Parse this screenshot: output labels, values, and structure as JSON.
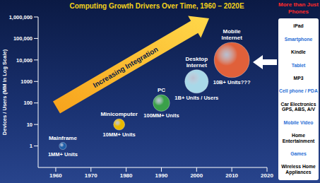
{
  "chart_data": {
    "type": "scatter",
    "title": "Computing Growth Drivers Over Time, 1960 – 2020E",
    "y_label": "Devices / Users (MM in Log Scale)",
    "x": [
      1962,
      1978,
      1990,
      2000,
      2010
    ],
    "values": [
      1,
      10,
      100,
      1000,
      10000
    ],
    "sizes": [
      1,
      2.5,
      5.5,
      11,
      25
    ],
    "labels": [
      "Mainframe",
      "Minicomputer",
      "PC",
      "Desktop Internet",
      "Mobile Internet"
    ],
    "unit_labels": [
      "1MM+ Units",
      "10MM+ Units",
      "100MM+ Units",
      "1B+ Units / Users",
      "10B+ Units???"
    ],
    "colors": [
      "#1f5fa8",
      "#e8b800",
      "#3aa04a",
      "#a8d8e8",
      "#e0603a"
    ],
    "log": "y",
    "xlim": [
      1955,
      2020
    ],
    "xticks": [
      1960,
      1970,
      1980,
      1990,
      2000,
      2010,
      2020
    ],
    "ylim": [
      0.1,
      1000000
    ],
    "yticks": [
      1,
      10,
      100,
      1000,
      {
        "value": 10000,
        "label": "10,000"
      },
      {
        "value": 100000,
        "label": "100,000"
      },
      {
        "value": 1000000,
        "label": "1,000,000"
      }
    ],
    "grid": false,
    "annotation": "Increasing Integration",
    "sidebar": {
      "title": "More than Just Phones",
      "items": [
        "iPad",
        "Smartphone",
        "Kindle",
        "Tablet",
        "MP3",
        "Cell phone / PDA",
        "Car Electronics GPS, ABS, A/V",
        "Mobile Video",
        "Home Entertainment",
        "Games",
        "Wireless Home Appliances"
      ],
      "colors": [
        "#000000",
        "#2a6fd6",
        "#000000",
        "#2a6fd6",
        "#000000",
        "#2a6fd6",
        "#000000",
        "#2a6fd6",
        "#000000",
        "#2a6fd6",
        "#000000"
      ]
    }
  }
}
